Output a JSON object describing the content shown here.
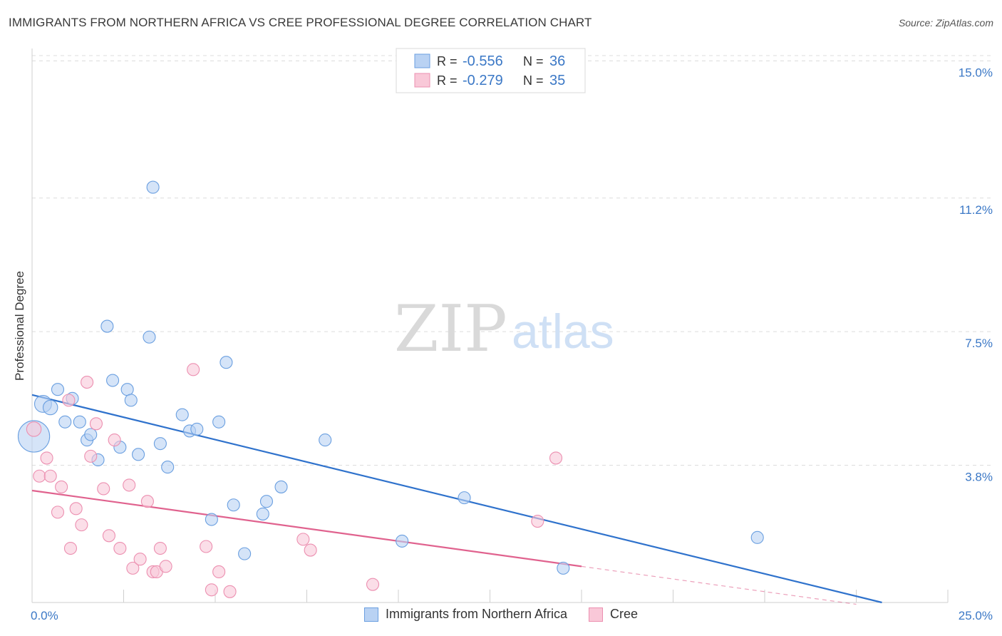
{
  "title": "IMMIGRANTS FROM NORTHERN AFRICA VS CREE PROFESSIONAL DEGREE CORRELATION CHART",
  "source": "Source: ZipAtlas.com",
  "watermark": {
    "zip": "ZIP",
    "atlas": "atlas"
  },
  "chart_data": {
    "type": "scatter",
    "xlabel": "",
    "ylabel": "Professional Degree",
    "xlim": [
      0,
      25
    ],
    "ylim": [
      0,
      15.5
    ],
    "x_tick_labels": [
      "0.0%",
      "25.0%"
    ],
    "y_ticks": [
      3.8,
      7.5,
      11.2,
      15.0
    ],
    "y_tick_labels": [
      "3.8%",
      "7.5%",
      "11.2%",
      "15.0%"
    ],
    "grid": true,
    "legend_position": "top-center",
    "stats": [
      {
        "r_label": "R =",
        "r": "-0.556",
        "n_label": "N =",
        "n": "36"
      },
      {
        "r_label": "R =",
        "r": "-0.279",
        "n_label": "N =",
        "n": "35"
      }
    ],
    "series": [
      {
        "name": "Immigrants from Northern Africa",
        "color": "#6a9fe0",
        "fill": "#b9d2f3",
        "line_color": "#2f72cc",
        "trend": {
          "x0": 0.0,
          "y0": 5.75,
          "x1": 23.2,
          "y1": 0.0
        },
        "points": [
          {
            "x": 0.05,
            "y": 4.6,
            "s": 2.6
          },
          {
            "x": 0.3,
            "y": 5.5,
            "s": 1.4
          },
          {
            "x": 0.5,
            "y": 5.4,
            "s": 1.2
          },
          {
            "x": 0.7,
            "y": 5.9,
            "s": 1
          },
          {
            "x": 0.9,
            "y": 5.0,
            "s": 1
          },
          {
            "x": 1.1,
            "y": 5.65,
            "s": 1
          },
          {
            "x": 1.3,
            "y": 5.0,
            "s": 1
          },
          {
            "x": 1.5,
            "y": 4.5,
            "s": 1
          },
          {
            "x": 1.6,
            "y": 4.65,
            "s": 1
          },
          {
            "x": 1.8,
            "y": 3.95,
            "s": 1
          },
          {
            "x": 2.05,
            "y": 7.65,
            "s": 1
          },
          {
            "x": 2.2,
            "y": 6.15,
            "s": 1
          },
          {
            "x": 2.4,
            "y": 4.3,
            "s": 1
          },
          {
            "x": 2.6,
            "y": 5.9,
            "s": 1
          },
          {
            "x": 2.7,
            "y": 5.6,
            "s": 1
          },
          {
            "x": 2.9,
            "y": 4.1,
            "s": 1
          },
          {
            "x": 3.2,
            "y": 7.35,
            "s": 1
          },
          {
            "x": 3.3,
            "y": 11.5,
            "s": 1
          },
          {
            "x": 3.5,
            "y": 4.4,
            "s": 1
          },
          {
            "x": 3.7,
            "y": 3.75,
            "s": 1
          },
          {
            "x": 4.1,
            "y": 5.2,
            "s": 1
          },
          {
            "x": 4.3,
            "y": 4.75,
            "s": 1
          },
          {
            "x": 4.5,
            "y": 4.8,
            "s": 1
          },
          {
            "x": 4.9,
            "y": 2.3,
            "s": 1
          },
          {
            "x": 5.1,
            "y": 5.0,
            "s": 1
          },
          {
            "x": 5.3,
            "y": 6.65,
            "s": 1
          },
          {
            "x": 5.5,
            "y": 2.7,
            "s": 1
          },
          {
            "x": 5.8,
            "y": 1.35,
            "s": 1
          },
          {
            "x": 6.3,
            "y": 2.45,
            "s": 1
          },
          {
            "x": 6.4,
            "y": 2.8,
            "s": 1
          },
          {
            "x": 6.8,
            "y": 3.2,
            "s": 1
          },
          {
            "x": 8.0,
            "y": 4.5,
            "s": 1
          },
          {
            "x": 10.1,
            "y": 1.7,
            "s": 1
          },
          {
            "x": 11.8,
            "y": 2.9,
            "s": 1
          },
          {
            "x": 14.5,
            "y": 0.95,
            "s": 1
          },
          {
            "x": 19.8,
            "y": 1.8,
            "s": 1
          }
        ]
      },
      {
        "name": "Cree",
        "color": "#ec8fb0",
        "fill": "#f9c8d8",
        "line_color": "#e0628e",
        "trend": {
          "x0": 0.0,
          "y0": 3.1,
          "x1": 15.0,
          "y1": 1.0
        },
        "trend_dashed_to": {
          "x": 22.5,
          "y": -0.05
        },
        "points": [
          {
            "x": 0.05,
            "y": 4.8,
            "s": 1.2
          },
          {
            "x": 0.2,
            "y": 3.5,
            "s": 1
          },
          {
            "x": 0.4,
            "y": 4.0,
            "s": 1
          },
          {
            "x": 0.5,
            "y": 3.5,
            "s": 1
          },
          {
            "x": 0.7,
            "y": 2.5,
            "s": 1
          },
          {
            "x": 0.8,
            "y": 3.2,
            "s": 1
          },
          {
            "x": 1.0,
            "y": 5.6,
            "s": 1
          },
          {
            "x": 1.05,
            "y": 1.5,
            "s": 1
          },
          {
            "x": 1.2,
            "y": 2.6,
            "s": 1
          },
          {
            "x": 1.35,
            "y": 2.15,
            "s": 1
          },
          {
            "x": 1.5,
            "y": 6.1,
            "s": 1
          },
          {
            "x": 1.6,
            "y": 4.05,
            "s": 1
          },
          {
            "x": 1.75,
            "y": 4.95,
            "s": 1
          },
          {
            "x": 1.95,
            "y": 3.15,
            "s": 1
          },
          {
            "x": 2.1,
            "y": 1.85,
            "s": 1
          },
          {
            "x": 2.25,
            "y": 4.5,
            "s": 1
          },
          {
            "x": 2.4,
            "y": 1.5,
            "s": 1
          },
          {
            "x": 2.65,
            "y": 3.25,
            "s": 1
          },
          {
            "x": 2.75,
            "y": 0.95,
            "s": 1
          },
          {
            "x": 2.95,
            "y": 1.2,
            "s": 1
          },
          {
            "x": 3.15,
            "y": 2.8,
            "s": 1
          },
          {
            "x": 3.3,
            "y": 0.85,
            "s": 1
          },
          {
            "x": 3.4,
            "y": 0.85,
            "s": 1
          },
          {
            "x": 3.5,
            "y": 1.5,
            "s": 1
          },
          {
            "x": 3.65,
            "y": 1.0,
            "s": 1
          },
          {
            "x": 4.4,
            "y": 6.45,
            "s": 1
          },
          {
            "x": 4.75,
            "y": 1.55,
            "s": 1
          },
          {
            "x": 4.9,
            "y": 0.35,
            "s": 1
          },
          {
            "x": 5.1,
            "y": 0.85,
            "s": 1
          },
          {
            "x": 5.4,
            "y": 0.3,
            "s": 1
          },
          {
            "x": 7.4,
            "y": 1.75,
            "s": 1
          },
          {
            "x": 7.6,
            "y": 1.45,
            "s": 1
          },
          {
            "x": 9.3,
            "y": 0.5,
            "s": 1
          },
          {
            "x": 13.8,
            "y": 2.25,
            "s": 1
          },
          {
            "x": 14.3,
            "y": 4.0,
            "s": 1
          }
        ]
      }
    ]
  }
}
